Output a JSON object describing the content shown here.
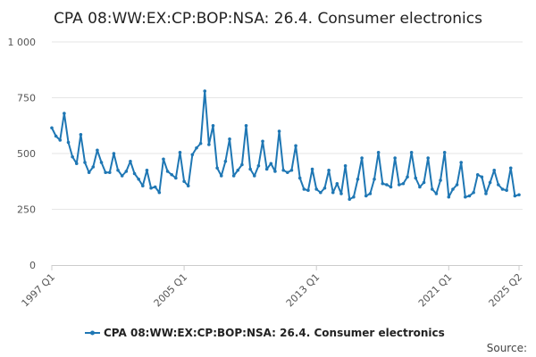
{
  "chart_data": {
    "type": "line",
    "title": "CPA 08:WW:EX:CP:BOP:NSA: 26.4. Consumer electronics",
    "xlabel": "",
    "ylabel": "",
    "ylim": [
      0,
      1000
    ],
    "yticks": [
      0,
      250,
      500,
      750,
      1000
    ],
    "ytick_labels": [
      "0",
      "250",
      "500",
      "750",
      "1 000"
    ],
    "xtick_labels": [
      "1997 Q1",
      "2005 Q1",
      "2013 Q1",
      "2021 Q1",
      "2025 Q2"
    ],
    "xtick_index": [
      0,
      32,
      64,
      96,
      113
    ],
    "grid": true,
    "legend_position": "bottom",
    "series": [
      {
        "name": "CPA 08:WW:EX:CP:BOP:NSA: 26.4. Consumer electronics",
        "color": "#1f77b4",
        "values": [
          615,
          578,
          560,
          680,
          550,
          485,
          455,
          585,
          460,
          415,
          440,
          515,
          460,
          415,
          415,
          500,
          425,
          400,
          420,
          465,
          410,
          385,
          355,
          425,
          345,
          350,
          325,
          475,
          420,
          405,
          390,
          505,
          375,
          355,
          495,
          525,
          545,
          780,
          540,
          625,
          435,
          400,
          465,
          565,
          400,
          425,
          450,
          625,
          430,
          400,
          445,
          555,
          430,
          455,
          420,
          600,
          425,
          415,
          425,
          535,
          390,
          340,
          335,
          430,
          340,
          325,
          345,
          425,
          325,
          365,
          320,
          445,
          295,
          305,
          385,
          480,
          310,
          320,
          385,
          505,
          365,
          360,
          350,
          480,
          360,
          365,
          395,
          505,
          390,
          350,
          370,
          480,
          340,
          320,
          380,
          505,
          305,
          340,
          360,
          460,
          305,
          310,
          325,
          405,
          395,
          320,
          370,
          425,
          360,
          340,
          335,
          435,
          310,
          315
        ]
      }
    ]
  },
  "legend": {
    "label": "CPA 08:WW:EX:CP:BOP:NSA: 26.4. Consumer electronics"
  },
  "source_label": "Source:"
}
